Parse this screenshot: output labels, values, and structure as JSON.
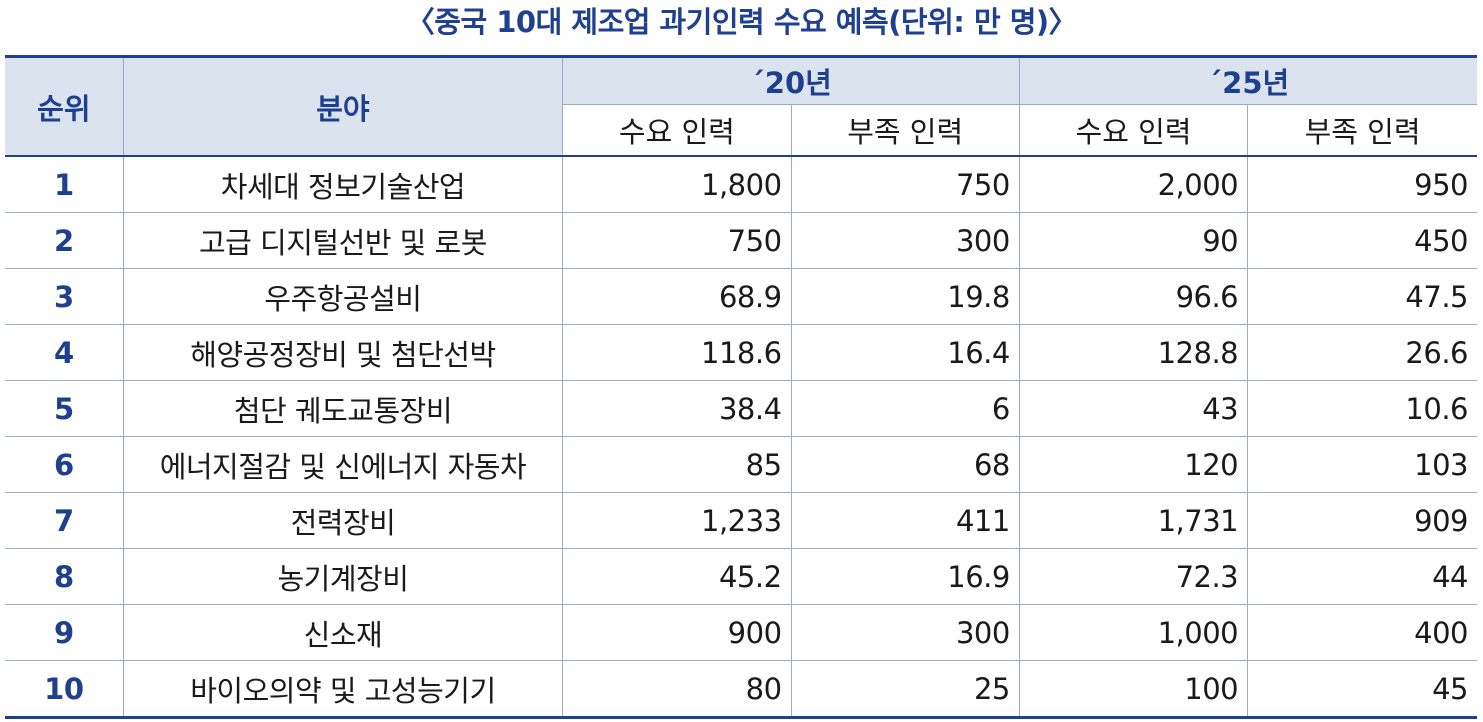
{
  "title": "〈중국 10대 제조업 과기인력 수요 예측(단위: 만 명)〉",
  "header": {
    "rank": "순위",
    "field": "분야",
    "year_2020": "´20년",
    "year_2025": "´25년",
    "demand": "수요 인력",
    "shortage": "부족 인력"
  },
  "rows": [
    {
      "rank": "1",
      "field": "차세대 정보기술산업",
      "d20": "1,800",
      "s20": "750",
      "d25": "2,000",
      "s25": "950"
    },
    {
      "rank": "2",
      "field": "고급 디지털선반 및 로봇",
      "d20": "750",
      "s20": "300",
      "d25": "90",
      "s25": "450"
    },
    {
      "rank": "3",
      "field": "우주항공설비",
      "d20": "68.9",
      "s20": "19.8",
      "d25": "96.6",
      "s25": "47.5"
    },
    {
      "rank": "4",
      "field": "해양공정장비 및 첨단선박",
      "d20": "118.6",
      "s20": "16.4",
      "d25": "128.8",
      "s25": "26.6"
    },
    {
      "rank": "5",
      "field": "첨단 궤도교통장비",
      "d20": "38.4",
      "s20": "6",
      "d25": "43",
      "s25": "10.6"
    },
    {
      "rank": "6",
      "field": "에너지절감 및 신에너지 자동차",
      "d20": "85",
      "s20": "68",
      "d25": "120",
      "s25": "103"
    },
    {
      "rank": "7",
      "field": "전력장비",
      "d20": "1,233",
      "s20": "411",
      "d25": "1,731",
      "s25": "909"
    },
    {
      "rank": "8",
      "field": "농기계장비",
      "d20": "45.2",
      "s20": "16.9",
      "d25": "72.3",
      "s25": "44"
    },
    {
      "rank": "9",
      "field": "신소재",
      "d20": "900",
      "s20": "300",
      "d25": "1,000",
      "s25": "400"
    },
    {
      "rank": "10",
      "field": "바이오의약 및 고성능기기",
      "d20": "80",
      "s20": "25",
      "d25": "100",
      "s25": "45"
    }
  ],
  "colors": {
    "accent": "#1f3f8f",
    "header_bg": "#dbe3ef",
    "rule": "#9aa9c4"
  }
}
